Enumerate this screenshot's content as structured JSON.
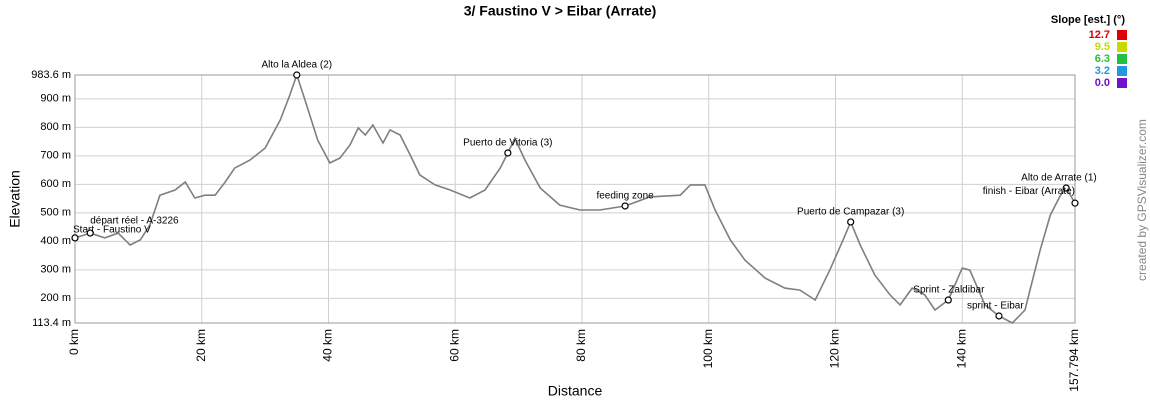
{
  "chart_data": {
    "type": "line",
    "title": "3/ Faustino V > Eibar (Arrate)",
    "x_label": "Distance",
    "y_label": "Elevation",
    "credit": "created by GPSVisualizer.com",
    "x": [
      0,
      2.4,
      4.7,
      6.8,
      8.7,
      10.3,
      11.8,
      13.4,
      15.8,
      17.4,
      18.9,
      20.5,
      22.1,
      23.7,
      25.2,
      27.6,
      30.0,
      32.4,
      33.9,
      35.0,
      36.3,
      38.3,
      40.2,
      41.8,
      43.4,
      44.7,
      45.8,
      47.0,
      48.6,
      49.7,
      51.3,
      52.9,
      54.4,
      56.8,
      59.2,
      62.3,
      64.7,
      67.1,
      68.3,
      69.4,
      71.0,
      73.4,
      76.5,
      79.7,
      82.8,
      86.8,
      90.7,
      95.5,
      97.1,
      99.4,
      101.0,
      103.4,
      105.7,
      108.9,
      112.0,
      114.4,
      116.8,
      119.1,
      121.2,
      122.4,
      123.9,
      126.2,
      128.6,
      130.2,
      132.1,
      134.1,
      135.7,
      137.8,
      140.0,
      141.2,
      143.6,
      145.8,
      147.9,
      149.9,
      150.7,
      152.3,
      153.9,
      155.5,
      156.4,
      157.794
    ],
    "series": [
      {
        "name": "Elevation",
        "color": "#7f7f7f",
        "values": [
          412,
          429,
          412,
          429,
          387,
          405,
          457,
          562,
          580,
          608,
          552,
          562,
          562,
          608,
          657,
          685,
          727,
          826,
          913,
          983.6,
          896,
          755,
          675,
          692,
          738,
          798,
          773,
          808,
          745,
          791,
          773,
          703,
          633,
          598,
          580,
          552,
          580,
          657,
          710,
          762,
          685,
          587,
          527,
          510,
          510,
          524,
          556,
          562,
          598,
          598,
          510,
          405,
          334,
          271,
          236,
          229,
          194,
          299,
          405,
          468,
          387,
          282,
          212,
          177,
          236,
          212,
          159,
          194,
          306,
          299,
          177,
          138,
          113.4,
          159,
          229,
          370,
          492,
          562,
          587,
          534
        ]
      }
    ],
    "xlim": [
      0,
      157.794
    ],
    "ylim": [
      113.4,
      983.6
    ],
    "xticks": [
      {
        "value": 0,
        "label": "0 km"
      },
      {
        "value": 20,
        "label": "20 km"
      },
      {
        "value": 40,
        "label": "40 km"
      },
      {
        "value": 60,
        "label": "60 km"
      },
      {
        "value": 80,
        "label": "80 km"
      },
      {
        "value": 100,
        "label": "100 km"
      },
      {
        "value": 120,
        "label": "120 km"
      },
      {
        "value": 140,
        "label": "140 km"
      },
      {
        "value": 157.794,
        "label": "157.794 km"
      }
    ],
    "yticks": [
      {
        "value": 113.4,
        "label": "113.4 m"
      },
      {
        "value": 200,
        "label": "200 m"
      },
      {
        "value": 300,
        "label": "300 m"
      },
      {
        "value": 400,
        "label": "400 m"
      },
      {
        "value": 500,
        "label": "500 m"
      },
      {
        "value": 600,
        "label": "600 m"
      },
      {
        "value": 700,
        "label": "700 m"
      },
      {
        "value": 800,
        "label": "800 m"
      },
      {
        "value": 900,
        "label": "900 m"
      },
      {
        "value": 983.6,
        "label": "983.6 m"
      }
    ],
    "grid": true,
    "waypoints": [
      {
        "label": "Start - Faustino V",
        "x": 0,
        "y": 412
      },
      {
        "label": "départ réel - A-3226",
        "x": 2.4,
        "y": 429
      },
      {
        "label": "Alto la Aldea (2)",
        "x": 35.0,
        "y": 983.6
      },
      {
        "label": "Puerto de Vitoria (3)",
        "x": 68.3,
        "y": 710
      },
      {
        "label": "feeding zone",
        "x": 86.8,
        "y": 524
      },
      {
        "label": "Puerto de Campazar (3)",
        "x": 122.4,
        "y": 468
      },
      {
        "label": "Sprint - Zaldibar",
        "x": 137.8,
        "y": 194
      },
      {
        "label": "sprint - Eibar",
        "x": 145.8,
        "y": 138
      },
      {
        "label": "Alto de Arrate (1)",
        "x": 156.4,
        "y": 587
      },
      {
        "label": "finish - Eibar (Arrate)",
        "x": 157.794,
        "y": 534
      }
    ],
    "slope_legend": {
      "title": "Slope [est.] (°)",
      "entries": [
        {
          "value": 12.7,
          "color": "#e00000"
        },
        {
          "value": 9.5,
          "color": "#c8d800"
        },
        {
          "value": 6.3,
          "color": "#20c040"
        },
        {
          "value": 3.2,
          "color": "#2098e0"
        },
        {
          "value": 0,
          "label": "0.0",
          "color": "#7010d0"
        }
      ]
    }
  }
}
